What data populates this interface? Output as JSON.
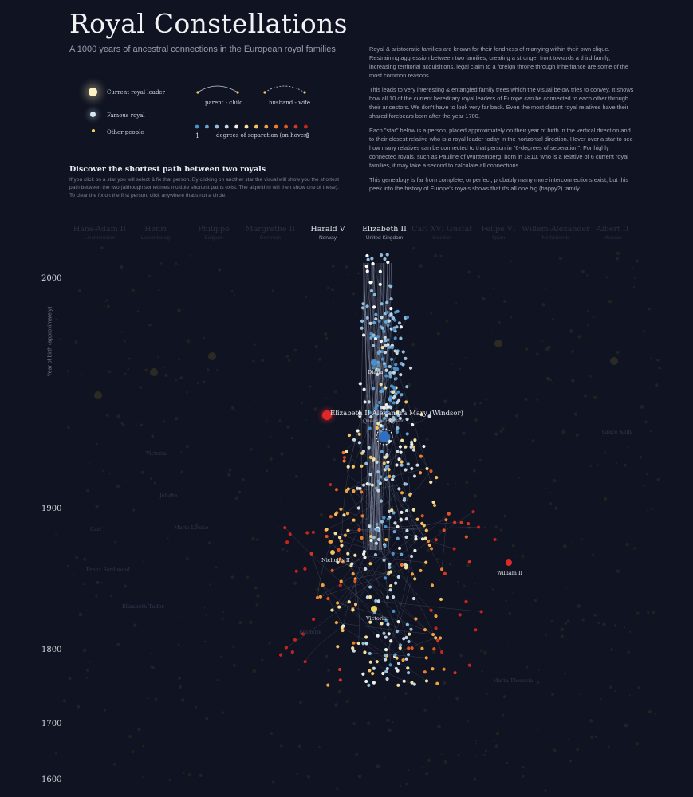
{
  "header": {
    "title": "Royal Constellations",
    "subtitle": "A 1000 years of ancestral connections in the European royal families"
  },
  "intro": {
    "paragraphs": [
      "Royal & aristocratic families are known for their fondness of marrying within their own clique. Restraining aggression between two families, creating a stronger front towards a third family, increasing territorial acquisitions, legal claim to a foreign throne through inheritance are some of the most common reasons.",
      "This leads to very interesting & entangled family trees which the visual below tries to convey. It shows how all 10 of the current hereditary royal leaders of Europe can be connected to each other through their ancestors. We don't have to look very far back. Even the most distant royal relatives have their shared forebears born after the year 1700.",
      "Each \"star\" below is a person, placed approximately on their year of birth in the vertical direction and to their closest relative who is a royal leader today in the horizontal direction. Hover over a star to see how many relatives can be connected to that person in \"6-degrees of seperation\". For highly connected royals, such as Pauline of Württemberg, born in 1810, who is a relative of 6 current royal families, it may take a second to calculate all connections.",
      "This genealogy is far from complete, or perfect, probably many more interconnections exist, but this peek into the history of Europe's royals shows that it's all one big (happy?) family."
    ]
  },
  "legend": {
    "current_leader": "Current royal leader",
    "famous_royal": "Famous royal",
    "other_people": "Other people",
    "parent_child": "parent - child",
    "husband_wife": "husband - wife",
    "degree_min": "1",
    "degree_label": "degrees of separation (on hover)",
    "degree_max": "6",
    "degree_colors": [
      "#4a8fc7",
      "#6aa3cf",
      "#92bcd9",
      "#c4d8e4",
      "#eef0ea",
      "#f3e3a0",
      "#f4c15e",
      "#f2a23c",
      "#ee7d2c",
      "#e35623",
      "#d63520",
      "#c9231d"
    ]
  },
  "discover": {
    "heading": "Discover the shortest path between two royals",
    "text": "If you click on a star you will select & fix that person. By clicking on another star the visual will show you the shortest path between the two (although sometimes multiple shortest paths exist. The algorithm will then show one of these). To clear the fix on the first person, click anywhere that's not a circle."
  },
  "leaders": [
    {
      "name": "Hans-Adam II",
      "country": "Liechtenstein",
      "state": "dim"
    },
    {
      "name": "Henri",
      "country": "Luxembourg",
      "state": "dim"
    },
    {
      "name": "Philippe",
      "country": "Belgium",
      "state": "dim"
    },
    {
      "name": "Margrethe II",
      "country": "Denmark",
      "state": "dim"
    },
    {
      "name": "Harald V",
      "country": "Norway",
      "state": "active"
    },
    {
      "name": "Elizabeth II",
      "country": "United Kingdom",
      "state": "active"
    },
    {
      "name": "Carl XVI Gustaf",
      "country": "Sweden",
      "state": "dim"
    },
    {
      "name": "Felipe VI",
      "country": "Spain",
      "state": "dim"
    },
    {
      "name": "Willem-Alexander",
      "country": "Netherlands",
      "state": "dim"
    },
    {
      "name": "Albert II",
      "country": "Monaco",
      "state": "dim"
    }
  ],
  "axis": {
    "label": "Year of birth (approximately)",
    "years": [
      "2000",
      "1900",
      "1800",
      "1700",
      "1600"
    ]
  },
  "people_labels": {
    "diana": "Diana",
    "selected_name": "Elizabeth II Alexandra Mary (Windsor)",
    "selected_sub": "Queen of England",
    "nicholas": "Nicholas II",
    "victoria": "Victoria",
    "william": "William II",
    "dim": [
      "Victoria",
      "Ena",
      "Juliana",
      "Carl I",
      "Marie Louise",
      "Franz Ferdinand",
      "Elizabeth Tudor",
      "Maria Theresia",
      "Grace Kelly",
      "Frederik"
    ]
  },
  "colors": {
    "background": "#0f1322",
    "accent_blue": "#2f6fc0",
    "accent_red": "#e0282a",
    "link": "#9aa3c0"
  }
}
